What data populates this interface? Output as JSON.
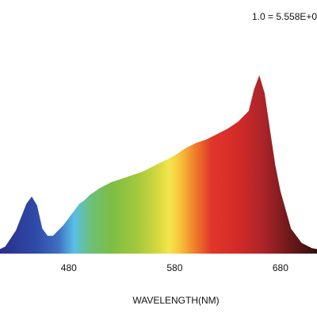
{
  "chart_data": {
    "type": "area",
    "xlabel": "WAVELENGTH(NM)",
    "ylabel": "",
    "scale_note": "1.0 = 5.558E+0",
    "x_ticks": [
      480,
      580,
      680
    ],
    "xlim": [
      400,
      740
    ],
    "ylim": [
      0,
      1.0
    ],
    "grid": false,
    "fill": "wavelength-color gradient",
    "series": [
      {
        "x": [
          400,
          410,
          420,
          430,
          440,
          445,
          450,
          455,
          460,
          465,
          470,
          475,
          480,
          485,
          490,
          495,
          500,
          510,
          520,
          530,
          540,
          550,
          560,
          570,
          580,
          590,
          600,
          610,
          620,
          630,
          640,
          650,
          655,
          660,
          665,
          670,
          675,
          680,
          690,
          700,
          710,
          720,
          730,
          740
        ],
        "y": [
          0.0,
          0.01,
          0.04,
          0.13,
          0.28,
          0.32,
          0.27,
          0.14,
          0.1,
          0.1,
          0.13,
          0.16,
          0.2,
          0.24,
          0.28,
          0.3,
          0.33,
          0.37,
          0.4,
          0.42,
          0.44,
          0.46,
          0.49,
          0.52,
          0.55,
          0.59,
          0.62,
          0.64,
          0.67,
          0.7,
          0.74,
          0.8,
          0.92,
          1.0,
          0.9,
          0.7,
          0.5,
          0.35,
          0.14,
          0.06,
          0.03,
          0.02,
          0.01,
          0.01
        ]
      }
    ]
  }
}
